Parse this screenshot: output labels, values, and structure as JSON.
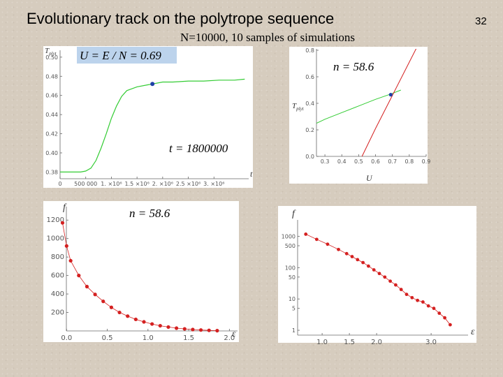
{
  "slide": {
    "title": "Evolutionary track on the polytrope sequence",
    "subtitle": "N=10000, 10 samples of simulations",
    "page_number": "32"
  },
  "colors": {
    "green_curve": "#33cc33",
    "red_curve": "#d42020",
    "blue_marker": "#1f3fa8",
    "highlight_box": "#bcd3ec"
  },
  "chart_data": [
    {
      "id": "time-evolution",
      "type": "line",
      "ylabel": "T_plyt",
      "xlabel": "t",
      "annotations": [
        "U = E / N = 0.69",
        "t = 1800000"
      ],
      "xlim": [
        0,
        3650000
      ],
      "ylim": [
        0.373,
        0.505
      ],
      "x_ticks": [
        0,
        500000,
        1000000,
        1500000,
        2000000,
        2500000,
        3000000
      ],
      "x_tick_labels": [
        "0",
        "500 000",
        "1. ×10⁶",
        "1.5 ×10⁶",
        "2. ×10⁶",
        "2.5 ×10⁶",
        "3. ×10⁶"
      ],
      "y_ticks": [
        0.38,
        0.4,
        0.42,
        0.44,
        0.46,
        0.48,
        0.5
      ],
      "y_tick_labels": [
        "0.38",
        "0.40",
        "0.42",
        "0.44",
        "0.46",
        "0.48",
        "0.50"
      ],
      "series": [
        {
          "x": [
            0,
            200000,
            400000,
            500000,
            600000,
            700000,
            800000,
            900000,
            1000000,
            1100000,
            1200000,
            1300000,
            1500000,
            1700000,
            1800000,
            2000000,
            2200000,
            2500000,
            2800000,
            3100000,
            3400000,
            3600000
          ],
          "y": [
            0.38,
            0.38,
            0.38,
            0.381,
            0.384,
            0.392,
            0.405,
            0.42,
            0.436,
            0.449,
            0.459,
            0.465,
            0.469,
            0.471,
            0.472,
            0.474,
            0.474,
            0.475,
            0.475,
            0.476,
            0.476,
            0.477
          ]
        }
      ],
      "marker": {
        "x": 1800000,
        "y": 0.472
      }
    },
    {
      "id": "temperature-vs-energy",
      "type": "line",
      "ylabel": "T_plyt",
      "xlabel": "U",
      "annotations": [
        "n = 58.6"
      ],
      "xlim": [
        0.25,
        0.9
      ],
      "ylim": [
        0,
        0.8
      ],
      "x_ticks": [
        0.3,
        0.4,
        0.5,
        0.6,
        0.7,
        0.8,
        0.9
      ],
      "x_tick_labels": [
        "0.3",
        "0.4",
        "0.5",
        "0.6",
        "0.7",
        "0.8",
        "0.9"
      ],
      "y_ticks": [
        0,
        0.2,
        0.4,
        0.6,
        0.8
      ],
      "y_tick_labels": [
        "0.0",
        "0.2",
        "0.4",
        "0.6",
        "0.8"
      ],
      "series": [
        {
          "x": [
            0.25,
            0.3,
            0.4,
            0.5,
            0.6,
            0.69,
            0.75
          ],
          "y": [
            0.25,
            0.28,
            0.33,
            0.38,
            0.43,
            0.47,
            0.5
          ]
        },
        {
          "x": [
            0.52,
            0.6,
            0.7,
            0.8,
            0.9
          ],
          "y": [
            0.0,
            0.21,
            0.46,
            0.71,
            0.96
          ]
        }
      ],
      "marker": {
        "x": 0.69,
        "y": 0.465
      }
    },
    {
      "id": "distribution-linear",
      "type": "scatter",
      "ylabel": "f",
      "xlabel": "ε",
      "annotations": [
        "n = 58.6"
      ],
      "xlim": [
        -0.08,
        2.1
      ],
      "ylim": [
        0,
        1300
      ],
      "x_ticks": [
        0,
        0.5,
        1.0,
        1.5,
        2.0
      ],
      "x_tick_labels": [
        "0.0",
        "0.5",
        "1.0",
        "1.5",
        "2.0"
      ],
      "y_ticks": [
        200,
        400,
        600,
        800,
        1000,
        1200
      ],
      "y_tick_labels": [
        "200",
        "400",
        "600",
        "800",
        "1000",
        "1200"
      ],
      "series": [
        {
          "x": [
            -0.05,
            0.0,
            0.05,
            0.15,
            0.25,
            0.35,
            0.45,
            0.55,
            0.65,
            0.75,
            0.85,
            0.95,
            1.05,
            1.15,
            1.25,
            1.35,
            1.45,
            1.55,
            1.65,
            1.75,
            1.85
          ],
          "y": [
            1170,
            920,
            760,
            600,
            480,
            395,
            320,
            255,
            200,
            160,
            125,
            98,
            75,
            56,
            42,
            30,
            22,
            15,
            10,
            6,
            3
          ]
        }
      ]
    },
    {
      "id": "distribution-log",
      "type": "scatter",
      "ylabel": "f",
      "xlabel": "ε",
      "log_y": true,
      "xlim": [
        0.55,
        3.55
      ],
      "ylim": [
        0.7,
        2000
      ],
      "x_ticks": [
        1.0,
        1.5,
        2.0,
        3.0
      ],
      "x_tick_labels": [
        "1.0",
        "1.5",
        "2.0",
        "3.0"
      ],
      "y_ticks": [
        1,
        5,
        10,
        50,
        100,
        500,
        1000
      ],
      "y_tick_labels": [
        "1",
        "5",
        "10",
        "50",
        "100",
        "500",
        "1000"
      ],
      "series": [
        {
          "x": [
            0.7,
            0.9,
            1.1,
            1.3,
            1.45,
            1.55,
            1.65,
            1.75,
            1.85,
            1.95,
            2.05,
            2.15,
            2.25,
            2.35,
            2.45,
            2.55,
            2.65,
            2.75,
            2.85,
            2.95,
            3.05,
            3.15,
            3.25,
            3.35
          ],
          "y": [
            1170,
            800,
            560,
            380,
            280,
            225,
            180,
            145,
            112,
            85,
            65,
            50,
            37,
            28,
            20,
            14,
            11,
            9,
            8,
            6,
            5,
            3.5,
            2.5,
            1.5
          ]
        }
      ]
    }
  ]
}
